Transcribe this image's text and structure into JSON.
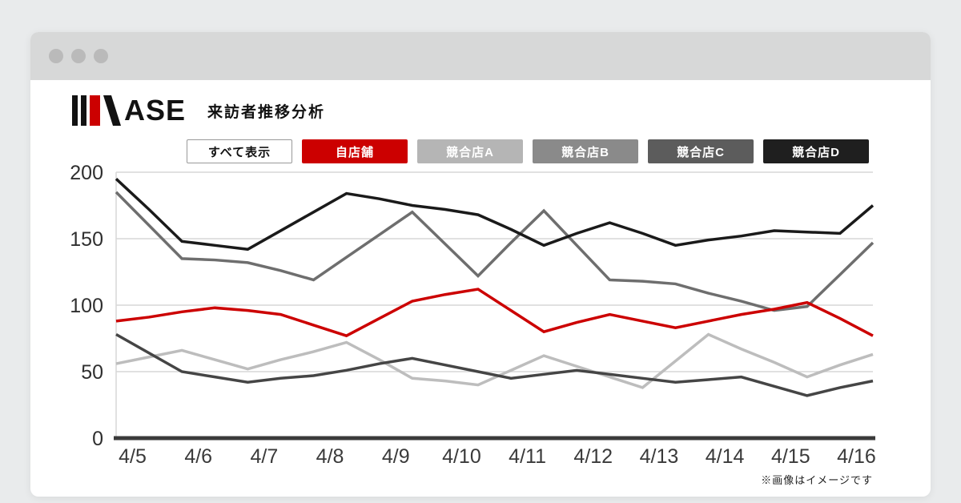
{
  "header": {
    "logo_text": "ASE",
    "brand_name": "MASE",
    "title": "来訪者推移分析"
  },
  "brand_colors": {
    "accent_red": "#cc0000",
    "ink": "#121212"
  },
  "filters": [
    {
      "label": "すべて表示",
      "bg": "#ffffff",
      "color": "#111111",
      "border": "#999999"
    },
    {
      "label": "自店舗",
      "bg": "#cc0000",
      "color": "#ffffff"
    },
    {
      "label": "競合店A",
      "bg": "#b5b5b5",
      "color": "#ffffff"
    },
    {
      "label": "競合店B",
      "bg": "#8a8a8a",
      "color": "#ffffff"
    },
    {
      "label": "競合店C",
      "bg": "#5c5c5c",
      "color": "#ffffff"
    },
    {
      "label": "競合店D",
      "bg": "#1f1f1f",
      "color": "#ffffff"
    }
  ],
  "chart_data": {
    "type": "line",
    "title": "来訪者推移分析",
    "categories": [
      "4/5",
      "4/6",
      "4/7",
      "4/8",
      "4/9",
      "4/10",
      "4/11",
      "4/12",
      "4/13",
      "4/14",
      "4/15",
      "4/16"
    ],
    "points_per_label": 2,
    "ylim": [
      0,
      200
    ],
    "yticks": [
      0,
      50,
      100,
      150,
      200
    ],
    "grid": "horizontal",
    "legend_position": "top-buttons",
    "series": [
      {
        "name": "競合店A",
        "color": "#bdbdbd",
        "values": [
          56,
          61,
          66,
          59,
          52,
          59,
          65,
          72,
          59,
          45,
          43,
          40,
          51,
          62,
          54,
          46,
          38,
          58,
          78,
          67,
          57,
          46,
          55,
          63
        ]
      },
      {
        "name": "競合店B",
        "color": "#6e6e6e",
        "values": [
          185,
          160,
          135,
          134,
          132,
          126,
          119,
          136,
          153,
          170,
          146,
          122,
          147,
          171,
          145,
          119,
          118,
          116,
          109,
          103,
          96,
          99,
          123,
          147
        ]
      },
      {
        "name": "競合店C",
        "color": "#454545",
        "values": [
          78,
          64,
          50,
          46,
          42,
          45,
          47,
          51,
          56,
          60,
          55,
          50,
          45,
          48,
          51,
          48,
          45,
          42,
          44,
          46,
          39,
          32,
          38,
          43
        ]
      },
      {
        "name": "競合店D",
        "color": "#1a1a1a",
        "values": [
          195,
          172,
          148,
          145,
          142,
          156,
          170,
          184,
          180,
          175,
          172,
          168,
          157,
          145,
          154,
          162,
          154,
          145,
          149,
          152,
          156,
          155,
          154,
          175
        ]
      },
      {
        "name": "自店舗",
        "color": "#cc0000",
        "values": [
          88,
          91,
          95,
          98,
          96,
          93,
          85,
          77,
          90,
          103,
          108,
          112,
          96,
          80,
          87,
          93,
          88,
          83,
          88,
          93,
          97,
          102,
          90,
          77
        ]
      }
    ]
  },
  "footnote": "※画像はイメージです"
}
